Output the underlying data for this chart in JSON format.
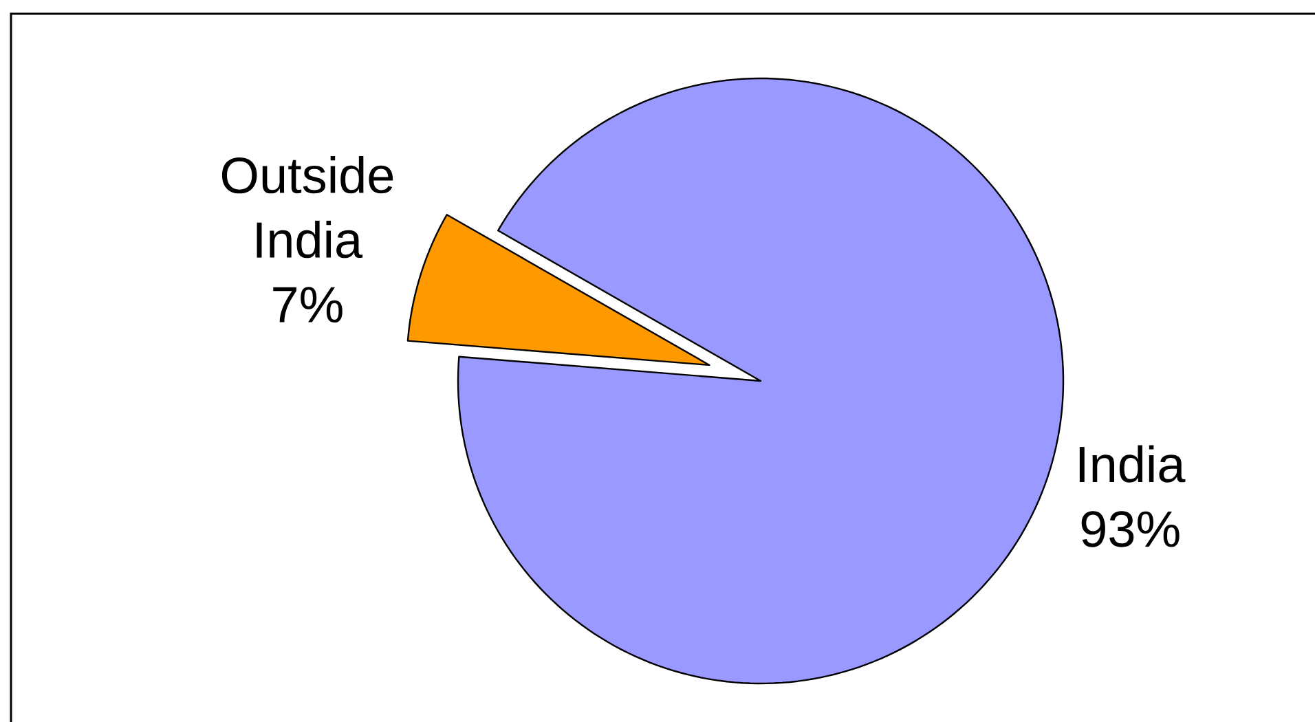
{
  "chart_data": {
    "type": "pie",
    "categories": [
      "Outside India",
      "India"
    ],
    "values": [
      7,
      93
    ],
    "value_labels": [
      "7%",
      "93%"
    ],
    "colors": [
      "#ff9900",
      "#9999ff"
    ]
  }
}
